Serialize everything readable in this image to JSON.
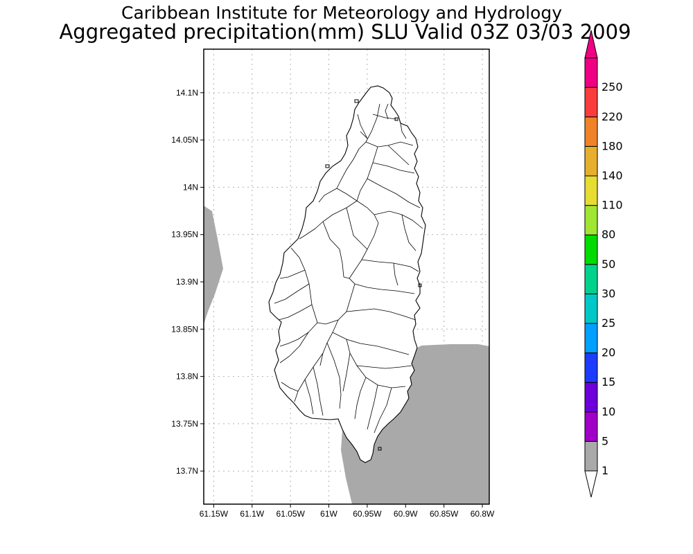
{
  "title": {
    "line1": "Caribbean Institute for Meteorology and Hydrology",
    "line2": "Aggregated precipitation(mm) SLU Valid 03Z 03/03 2009"
  },
  "map": {
    "lon_ticks": [
      "61.15W",
      "61.1W",
      "61.05W",
      "61W",
      "60.95W",
      "60.9W",
      "60.85W",
      "60.8W"
    ],
    "lat_ticks": [
      "14.1N",
      "14.05N",
      "14N",
      "13.95N",
      "13.9N",
      "13.85N",
      "13.8N",
      "13.75N",
      "13.7N"
    ],
    "lon_range": [
      -61.163,
      -60.791
    ],
    "lat_range": [
      13.665,
      14.146
    ],
    "lon_values": [
      -61.15,
      -61.1,
      -61.05,
      -61.0,
      -60.95,
      -60.9,
      -60.85,
      -60.8
    ],
    "lat_values": [
      14.1,
      14.05,
      14.0,
      13.95,
      13.9,
      13.85,
      13.8,
      13.75,
      13.7
    ],
    "grid": true,
    "island_fill": "#ffffff",
    "precip_fill": "#a9a9a9"
  },
  "colorbar": {
    "levels": [
      "1",
      "5",
      "10",
      "15",
      "20",
      "25",
      "30",
      "50",
      "80",
      "110",
      "140",
      "180",
      "220",
      "250"
    ],
    "colors": [
      "#a9a9a9",
      "#a000c8",
      "#6e00dc",
      "#1e3cff",
      "#00a0ff",
      "#00c8c8",
      "#00d28c",
      "#00dc00",
      "#a0e632",
      "#e6dc32",
      "#e6af2d",
      "#f08228",
      "#fa3c3c",
      "#f00082"
    ],
    "under_color": "#ffffff",
    "over_color": "#f00082"
  }
}
